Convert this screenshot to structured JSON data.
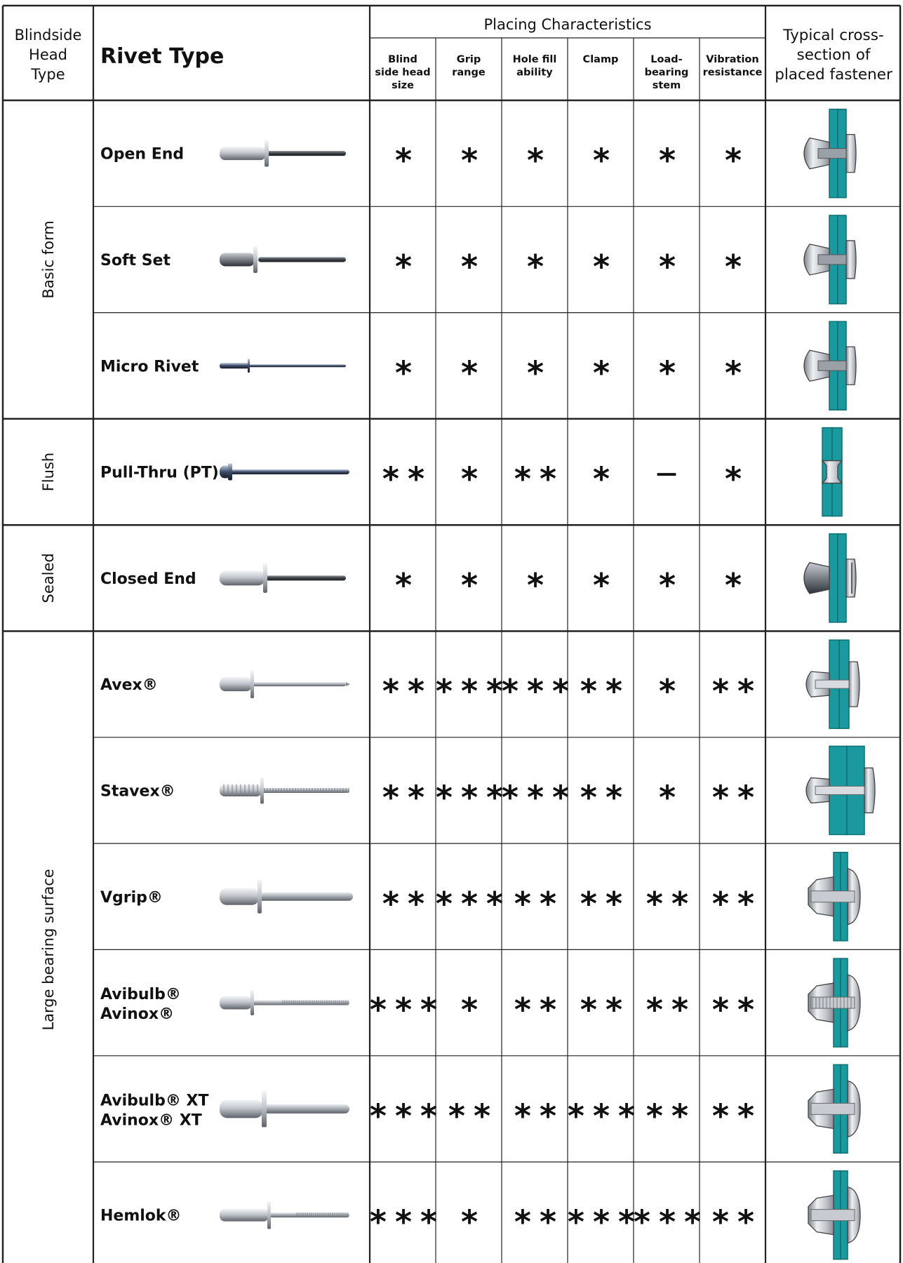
{
  "header": {
    "blindside_head_type": [
      "Blindside",
      "Head",
      "Type"
    ],
    "rivet_type": "Rivet Type",
    "placing_characteristics": "Placing Characteristics",
    "characteristics": [
      [
        "Blind",
        "side head",
        "size"
      ],
      [
        "Grip",
        "range"
      ],
      [
        "Hole fill",
        "ability"
      ],
      [
        "Clamp"
      ],
      [
        "Load-",
        "bearing",
        "stem"
      ],
      [
        "Vibration",
        "resistance"
      ]
    ],
    "cross_section": [
      "Typical cross-",
      "section of",
      "placed fastener"
    ]
  },
  "groups": [
    {
      "label": "Basic form",
      "start": 0,
      "count": 3
    },
    {
      "label": "Flush",
      "start": 3,
      "count": 1
    },
    {
      "label": "Sealed",
      "start": 4,
      "count": 1
    },
    {
      "label": "Large bearing surface",
      "start": 5,
      "count": 6
    }
  ],
  "rows": [
    {
      "name": [
        "Open End"
      ],
      "ratings": [
        "*",
        "*",
        "*",
        "*",
        "*",
        "*"
      ],
      "rivet": "open-end",
      "section": "open"
    },
    {
      "name": [
        "Soft Set"
      ],
      "ratings": [
        "*",
        "*",
        "*",
        "*",
        "*",
        "*"
      ],
      "rivet": "soft-set",
      "section": "open"
    },
    {
      "name": [
        "Micro Rivet"
      ],
      "ratings": [
        "*",
        "*",
        "*",
        "*",
        "*",
        "*"
      ],
      "rivet": "micro",
      "section": "open"
    },
    {
      "name": [
        "Pull-Thru (PT)"
      ],
      "ratings": [
        "**",
        "*",
        "**",
        "*",
        "–",
        "*"
      ],
      "rivet": "pull-thru",
      "section": "flush"
    },
    {
      "name": [
        "Closed End"
      ],
      "ratings": [
        "*",
        "*",
        "*",
        "*",
        "*",
        "*"
      ],
      "rivet": "closed-end",
      "section": "closed"
    },
    {
      "name": [
        "Avex®"
      ],
      "ratings": [
        "**",
        "***",
        "***",
        "**",
        "*",
        "**"
      ],
      "rivet": "avex",
      "section": "large"
    },
    {
      "name": [
        "Stavex®"
      ],
      "ratings": [
        "**",
        "***",
        "***",
        "**",
        "*",
        "**"
      ],
      "rivet": "stavex",
      "section": "thick"
    },
    {
      "name": [
        "Vgrip®"
      ],
      "ratings": [
        "**",
        "***",
        "**",
        "**",
        "**",
        "**"
      ],
      "rivet": "vgrip",
      "section": "bulb"
    },
    {
      "name": [
        "Avibulb®",
        "Avinox®"
      ],
      "ratings": [
        "***",
        "*",
        "**",
        "**",
        "**",
        "**"
      ],
      "rivet": "avibulb",
      "section": "coil"
    },
    {
      "name": [
        "Avibulb® XT",
        "Avinox® XT"
      ],
      "ratings": [
        "***",
        "**",
        "**",
        "***",
        "**",
        "**"
      ],
      "rivet": "avibulb-xt",
      "section": "bulb"
    },
    {
      "name": [
        "Hemlok®"
      ],
      "ratings": [
        "***",
        "*",
        "**",
        "***",
        "***",
        "**"
      ],
      "rivet": "hemlok",
      "section": "bulb"
    }
  ],
  "colors": {
    "plate": "#1a9a9f",
    "plate_edge": "#0f6f73",
    "metal_light": "#e6e8ec",
    "metal_mid": "#b5b9c0",
    "metal_dark": "#6d7178",
    "line": "#222222"
  }
}
